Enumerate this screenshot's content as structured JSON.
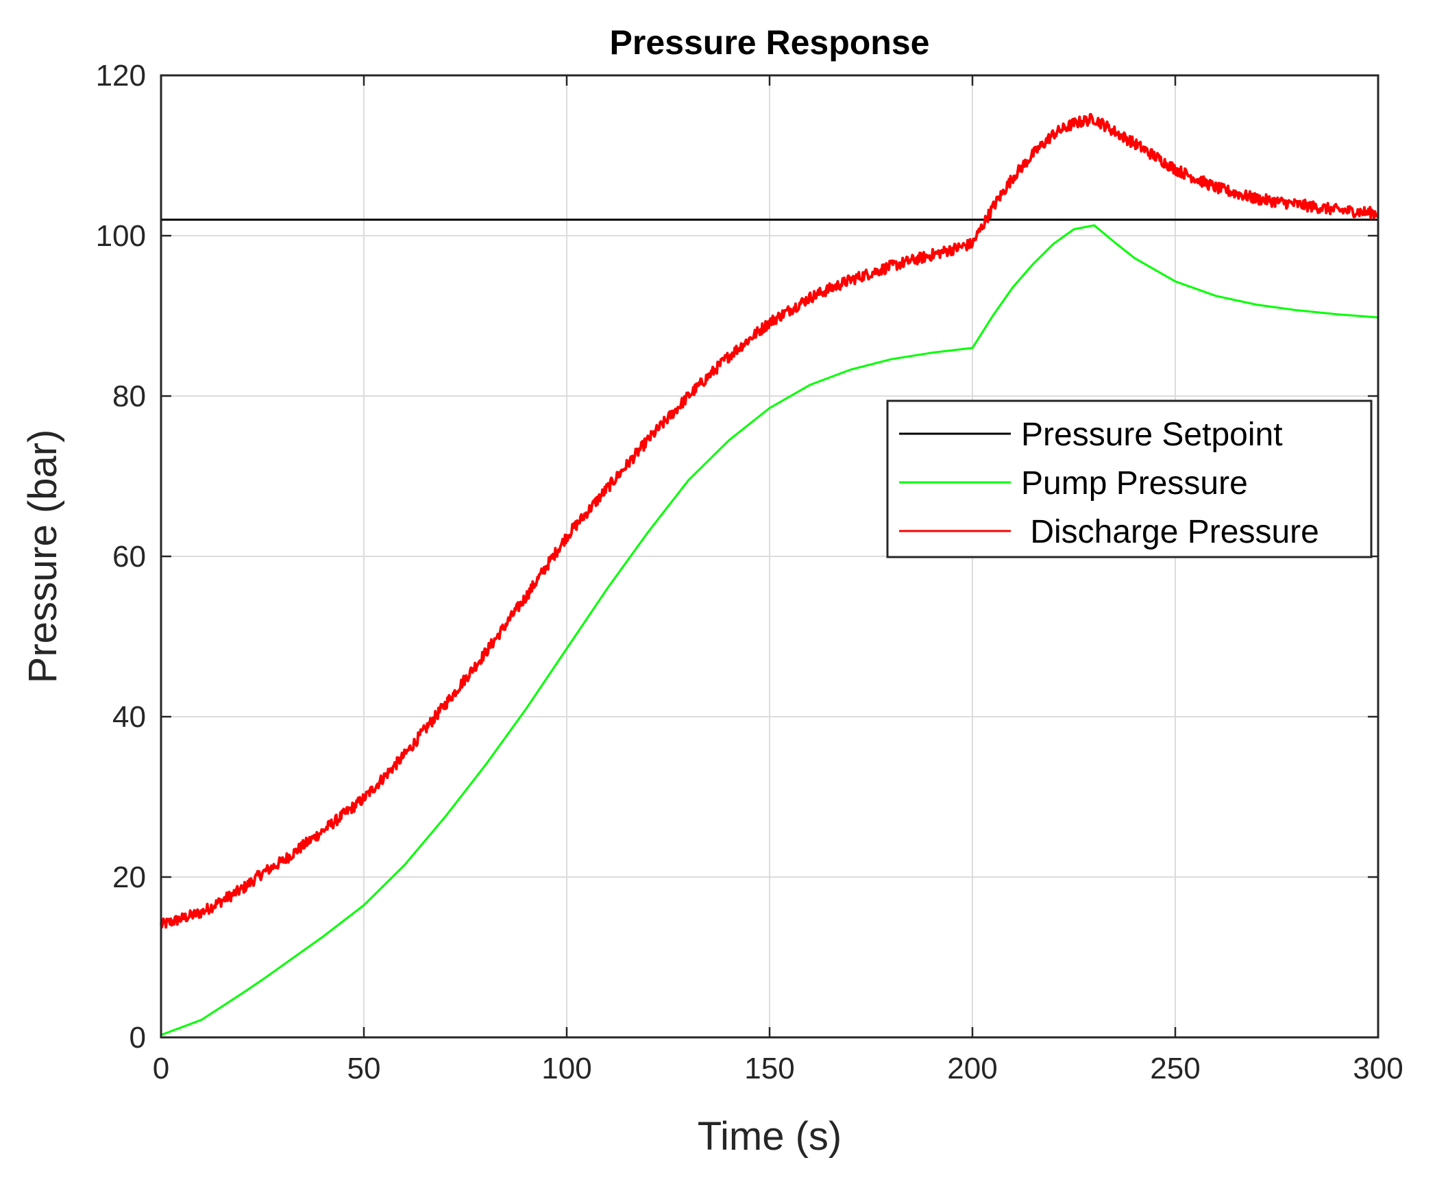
{
  "chart_data": {
    "type": "line",
    "title": "Pressure Response",
    "xlabel": "Time (s)",
    "ylabel": "Pressure (bar)",
    "xlim": [
      0,
      300
    ],
    "ylim": [
      0,
      120
    ],
    "xticks": [
      0,
      50,
      100,
      150,
      200,
      250,
      300
    ],
    "yticks": [
      0,
      20,
      40,
      60,
      80,
      100,
      120
    ],
    "grid": true,
    "legend_position": "upper-right",
    "series": [
      {
        "name": "Pressure Setpoint",
        "color": "#000000",
        "style": "solid",
        "x": [
          0,
          300
        ],
        "y": [
          102,
          102
        ]
      },
      {
        "name": "Pump Pressure",
        "color": "#00ff00",
        "style": "solid",
        "x": [
          0,
          10,
          20,
          25,
          30,
          40,
          50,
          60,
          70,
          80,
          90,
          100,
          110,
          120,
          130,
          140,
          150,
          160,
          170,
          180,
          190,
          200,
          205,
          210,
          215,
          220,
          225,
          230,
          235,
          240,
          250,
          260,
          270,
          280,
          290,
          300
        ],
        "y": [
          0.3,
          2.2,
          5.5,
          7.2,
          9,
          12.6,
          16.5,
          21.5,
          27.5,
          34,
          41,
          48.5,
          56,
          63,
          69.5,
          74.5,
          78.5,
          81.4,
          83.3,
          84.6,
          85.4,
          86,
          90,
          93.6,
          96.5,
          99,
          100.8,
          101.3,
          99.2,
          97.2,
          94.3,
          92.5,
          91.4,
          90.7,
          90.2,
          89.8
        ]
      },
      {
        "name": " Discharge Pressure",
        "color": "#ff0000",
        "style": "noisy",
        "x": [
          0,
          10,
          20,
          25,
          30,
          40,
          50,
          60,
          70,
          80,
          90,
          100,
          110,
          120,
          130,
          140,
          150,
          160,
          170,
          180,
          190,
          200,
          205,
          210,
          215,
          220,
          225,
          230,
          235,
          240,
          250,
          260,
          270,
          280,
          290,
          300
        ],
        "y": [
          14,
          15.6,
          18.5,
          20.5,
          22,
          25.8,
          29.8,
          35.2,
          41.5,
          48,
          55,
          62.5,
          68.5,
          74.5,
          80,
          85,
          89.2,
          92.3,
          94.5,
          96.2,
          97.6,
          99,
          103.5,
          107.3,
          110.2,
          112.7,
          114,
          114.6,
          113,
          111.5,
          108.3,
          106,
          104.6,
          103.9,
          103.2,
          102.8
        ]
      }
    ]
  }
}
